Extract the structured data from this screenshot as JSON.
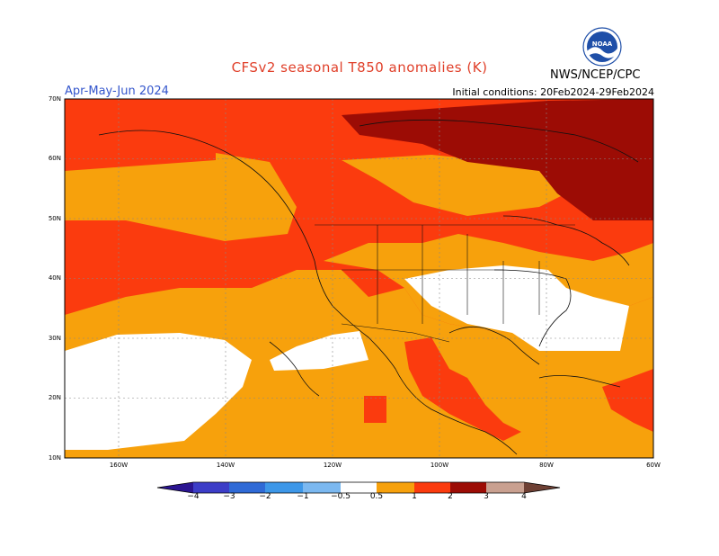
{
  "header": {
    "title": "CFSv2 seasonal T850 anomalies (K)",
    "period": "Apr-May-Jun 2024",
    "initial_conditions": "Initial conditions: 20Feb2024-29Feb2024",
    "agency": "NWS/NCEP/CPC",
    "logo_text": "NOAA"
  },
  "map": {
    "lat_labels": [
      "70N",
      "60N",
      "50N",
      "40N",
      "30N",
      "20N",
      "10N"
    ],
    "lon_labels": [
      "160W",
      "140W",
      "120W",
      "100W",
      "80W",
      "60W"
    ],
    "colors": {
      "lt_neg4": "#2b1591",
      "neg4_neg3": "#3c3dc7",
      "neg3_neg2": "#2f6ad6",
      "neg2_neg1": "#3d97e8",
      "neg1_neg05": "#7bb8f0",
      "near_normal": "#ffffff",
      "p05_1": "#f7a10c",
      "p1_2": "#fb3b0e",
      "p2_3": "#9c0c05",
      "p3_4": "#c9a090",
      "gt4": "#6e4034"
    }
  },
  "colorbar": {
    "ticks": [
      "−4",
      "−3",
      "−2",
      "−1",
      "−0.5",
      "0.5",
      "1",
      "2",
      "3",
      "4"
    ]
  }
}
